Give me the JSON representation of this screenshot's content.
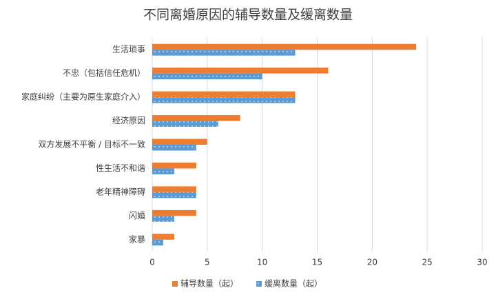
{
  "chart_data": {
    "type": "hbar",
    "title": "不同离婚原因的辅导数量及缓离数量",
    "categories": [
      "生活琐事",
      "不忠（包括信任危机）",
      "家庭纠纷（主要为原生家庭介入）",
      "经济原因",
      "双方发展不平衡 / 目标不一致",
      "性生活不和谐",
      "老年精神障碍",
      "闪婚",
      "家暴"
    ],
    "series": [
      {
        "name": "辅导数量（起）",
        "color": "#ed7d31",
        "values": [
          24,
          16,
          13,
          8,
          5,
          4,
          4,
          4,
          2
        ]
      },
      {
        "name": "缓离数量（起）",
        "color": "#5b9bd5",
        "values": [
          13,
          10,
          13,
          6,
          4,
          2,
          4,
          2,
          1
        ]
      }
    ],
    "xlim": [
      0,
      30
    ],
    "xticks": [
      0,
      5,
      10,
      15,
      20,
      25,
      30
    ],
    "grid": true,
    "legend": "bottom"
  }
}
